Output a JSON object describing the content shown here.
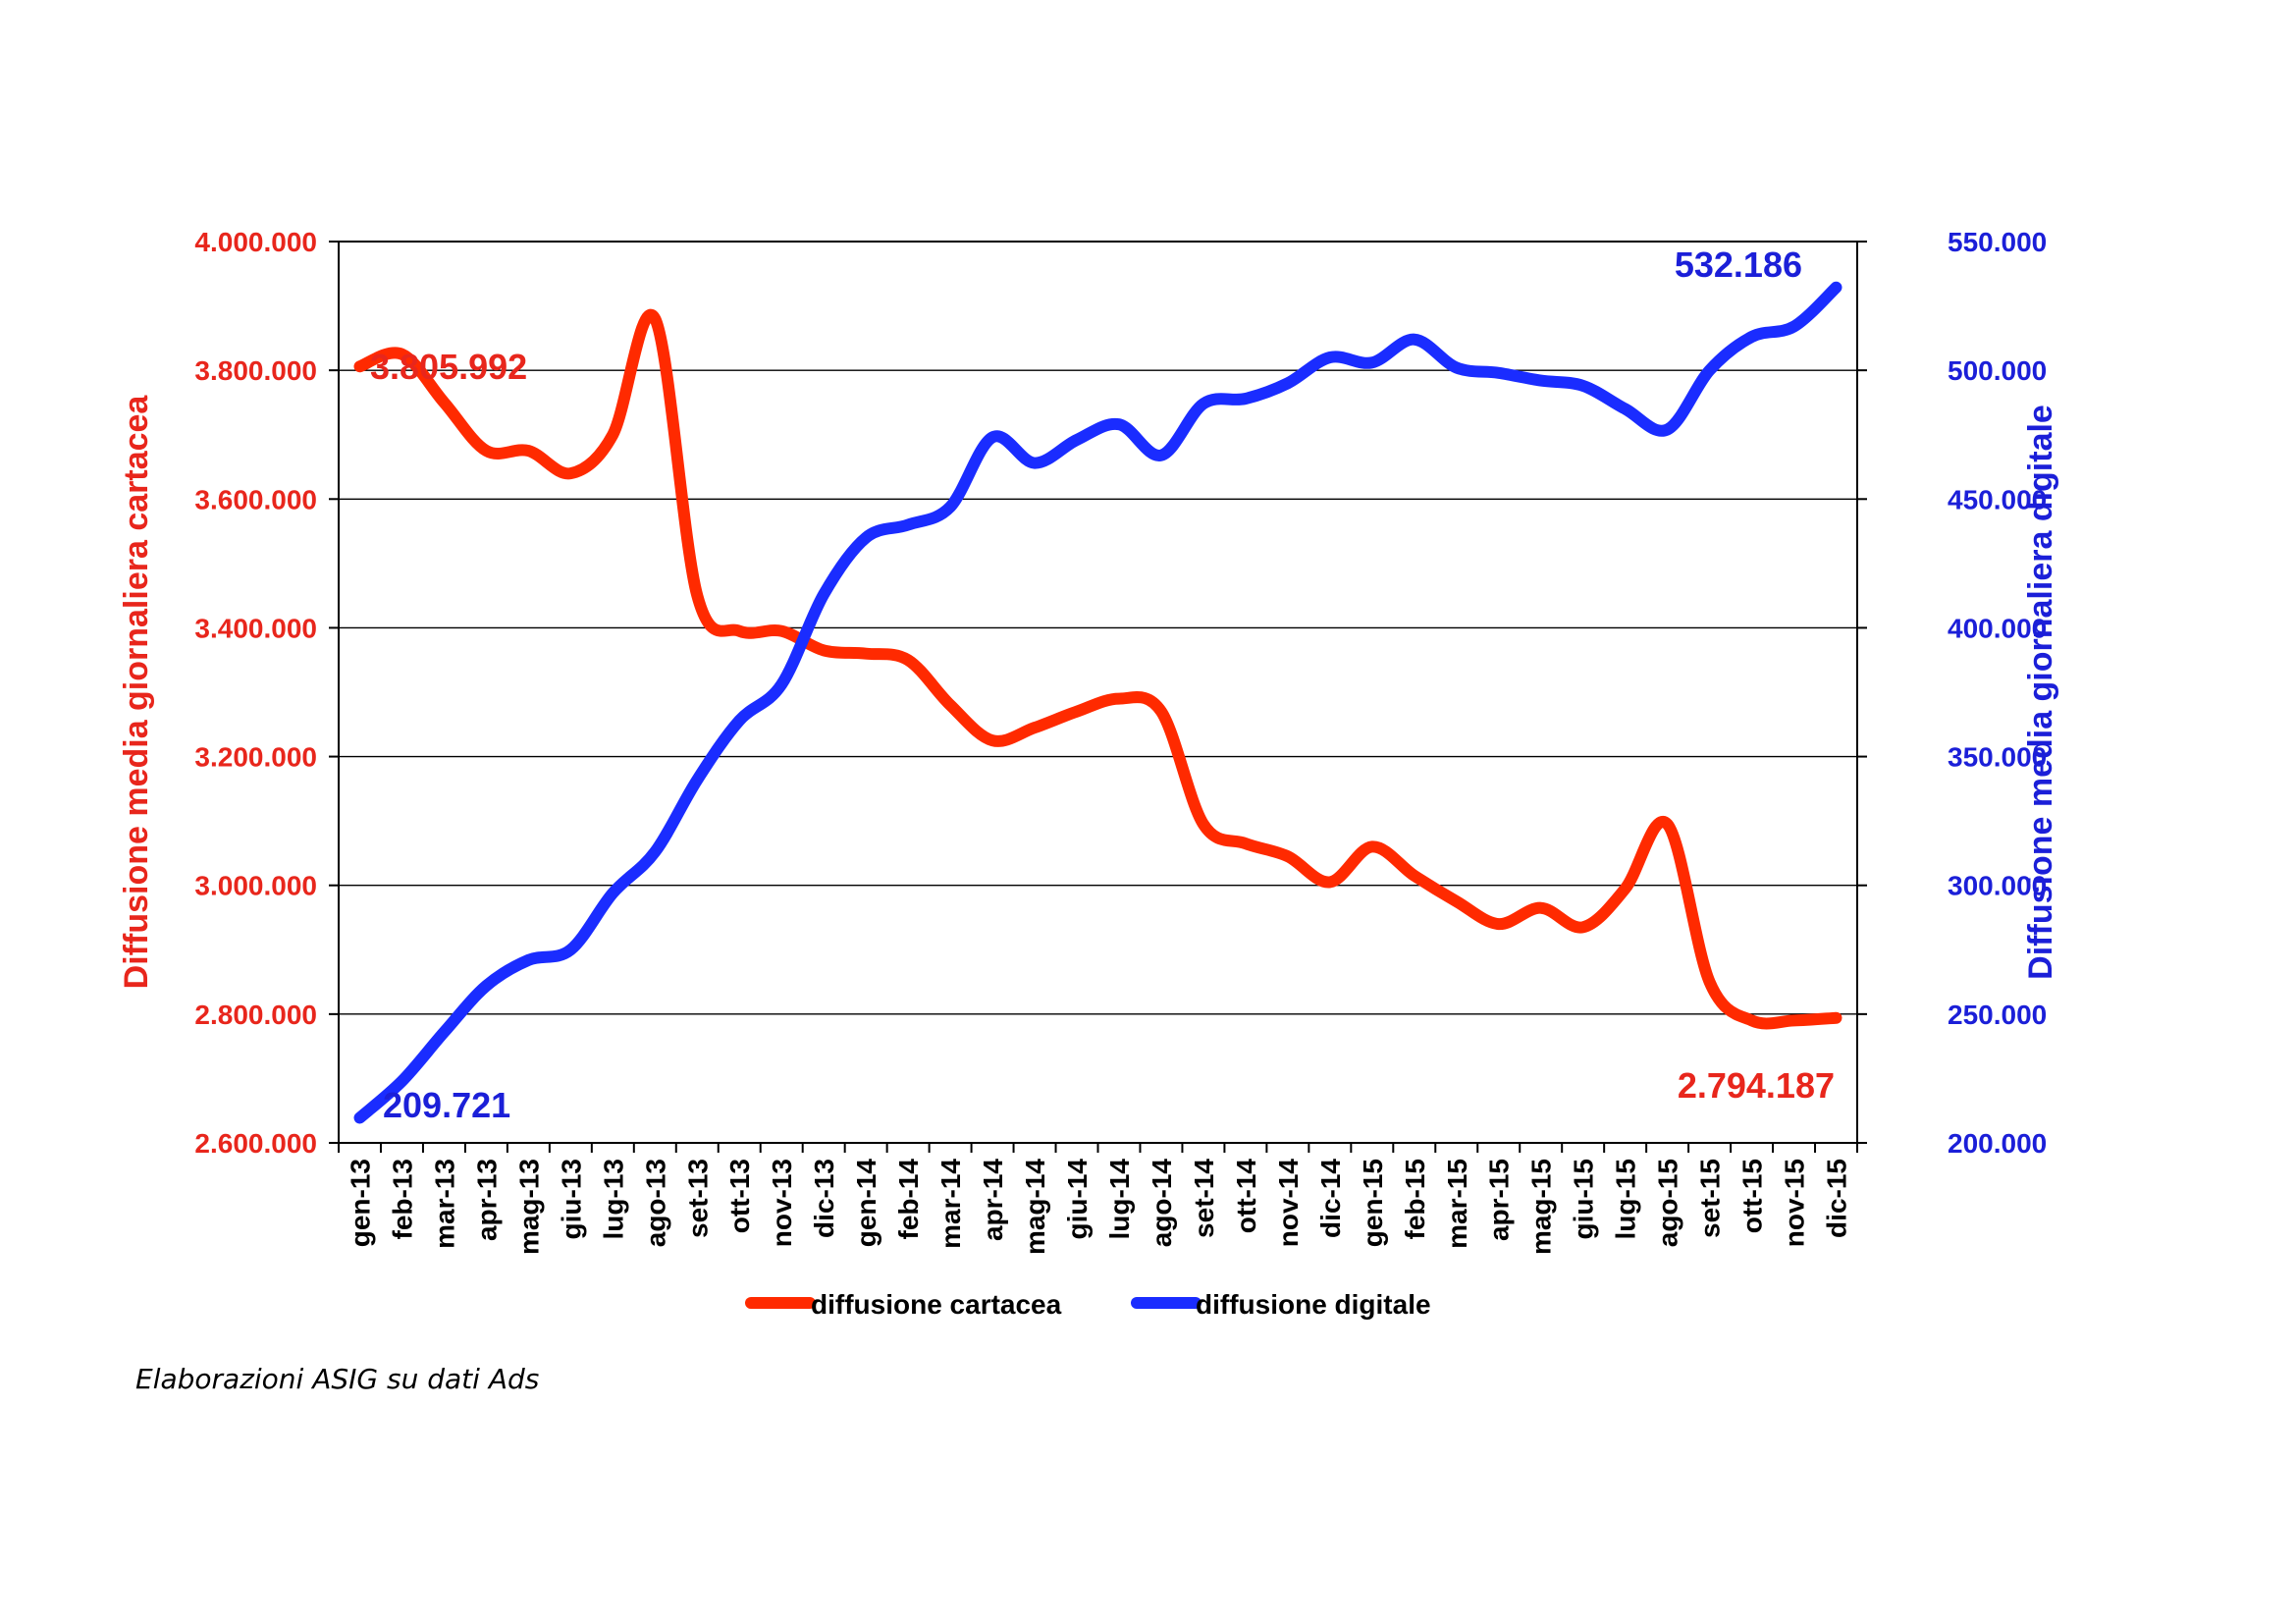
{
  "colors": {
    "primary_series": "#ff2a00",
    "secondary_series": "#1a2cff",
    "left_axis_text": "#e8261c",
    "right_axis_text": "#1b1fd8",
    "gridline": "#000000"
  },
  "source_note": "Elaborazioni ASIG su dati Ads",
  "chart_data": {
    "type": "line",
    "title": "",
    "categories": [
      "gen-13",
      "feb-13",
      "mar-13",
      "apr-13",
      "mag-13",
      "giu-13",
      "lug-13",
      "ago-13",
      "set-13",
      "ott-13",
      "nov-13",
      "dic-13",
      "gen-14",
      "feb-14",
      "mar-14",
      "apr-14",
      "mag-14",
      "giu-14",
      "lug-14",
      "ago-14",
      "set-14",
      "ott-14",
      "nov-14",
      "dic-14",
      "gen-15",
      "feb-15",
      "mar-15",
      "apr-15",
      "mag-15",
      "giu-15",
      "lug-15",
      "ago-15",
      "set-15",
      "ott-15",
      "nov-15",
      "dic-15"
    ],
    "xlabel": "",
    "ylabel_left": "Diffusione media giornaliera cartacea",
    "ylabel_right": "Diffusione media giornaliera digitale",
    "ylim_left": [
      2600000,
      4000000
    ],
    "ylim_right": [
      200000,
      550000
    ],
    "yticks_left": [
      "2.600.000",
      "2.800.000",
      "3.000.000",
      "3.200.000",
      "3.400.000",
      "3.600.000",
      "3.800.000",
      "4.000.000"
    ],
    "yticks_right": [
      "200.000",
      "250.000",
      "300.000",
      "350.000",
      "400.000",
      "450.000",
      "500.000",
      "550.000"
    ],
    "grid": true,
    "legend_position": "bottom",
    "series": [
      {
        "name": "diffusione cartacea",
        "axis": "left",
        "values": [
          3805992,
          3825000,
          3750000,
          3675000,
          3675000,
          3640000,
          3700000,
          3880000,
          3450000,
          3395000,
          3395000,
          3365000,
          3360000,
          3350000,
          3280000,
          3225000,
          3245000,
          3270000,
          3290000,
          3270000,
          3095000,
          3065000,
          3045000,
          3005000,
          3060000,
          3015000,
          2975000,
          2940000,
          2965000,
          2935000,
          2995000,
          3095000,
          2850000,
          2790000,
          2790000,
          2794187
        ]
      },
      {
        "name": "diffusione digitale",
        "axis": "right",
        "values": [
          209721,
          224000,
          243000,
          261000,
          271000,
          275000,
          297000,
          313000,
          341000,
          364000,
          378000,
          413000,
          435000,
          440000,
          447000,
          474000,
          464000,
          473000,
          479000,
          467000,
          487000,
          489000,
          495000,
          505000,
          503000,
          512000,
          501000,
          499000,
          496000,
          494000,
          485000,
          477000,
          500000,
          513000,
          517000,
          532186
        ]
      }
    ],
    "annotations": [
      {
        "text": "3.805.992",
        "series": "diffusione cartacea"
      },
      {
        "text": "2.794.187",
        "series": "diffusione cartacea"
      },
      {
        "text": "209.721",
        "series": "diffusione digitale"
      },
      {
        "text": "532.186",
        "series": "diffusione digitale"
      }
    ]
  }
}
